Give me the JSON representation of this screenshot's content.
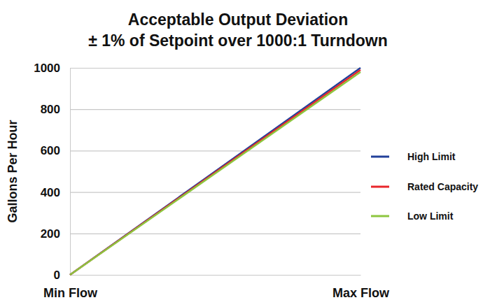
{
  "chart_data": {
    "type": "line",
    "title": "Acceptable Output Deviation",
    "subtitle": "± 1% of Setpoint over 1000:1 Turndown",
    "y_label": "Gallons Per Hour",
    "categories": [
      "Min Flow",
      "Max Flow"
    ],
    "series": [
      {
        "name": "High Limit",
        "color": "#22409a",
        "values": [
          0,
          1000
        ]
      },
      {
        "name": "Rated Capacity",
        "color": "#e8262b",
        "values": [
          0,
          990
        ]
      },
      {
        "name": "Low Limit",
        "color": "#8dc63f",
        "values": [
          0,
          980
        ]
      }
    ],
    "ylim": [
      0,
      1000
    ],
    "yticks": [
      0,
      200,
      400,
      600,
      800,
      1000
    ],
    "grid": true,
    "legend": "right"
  }
}
